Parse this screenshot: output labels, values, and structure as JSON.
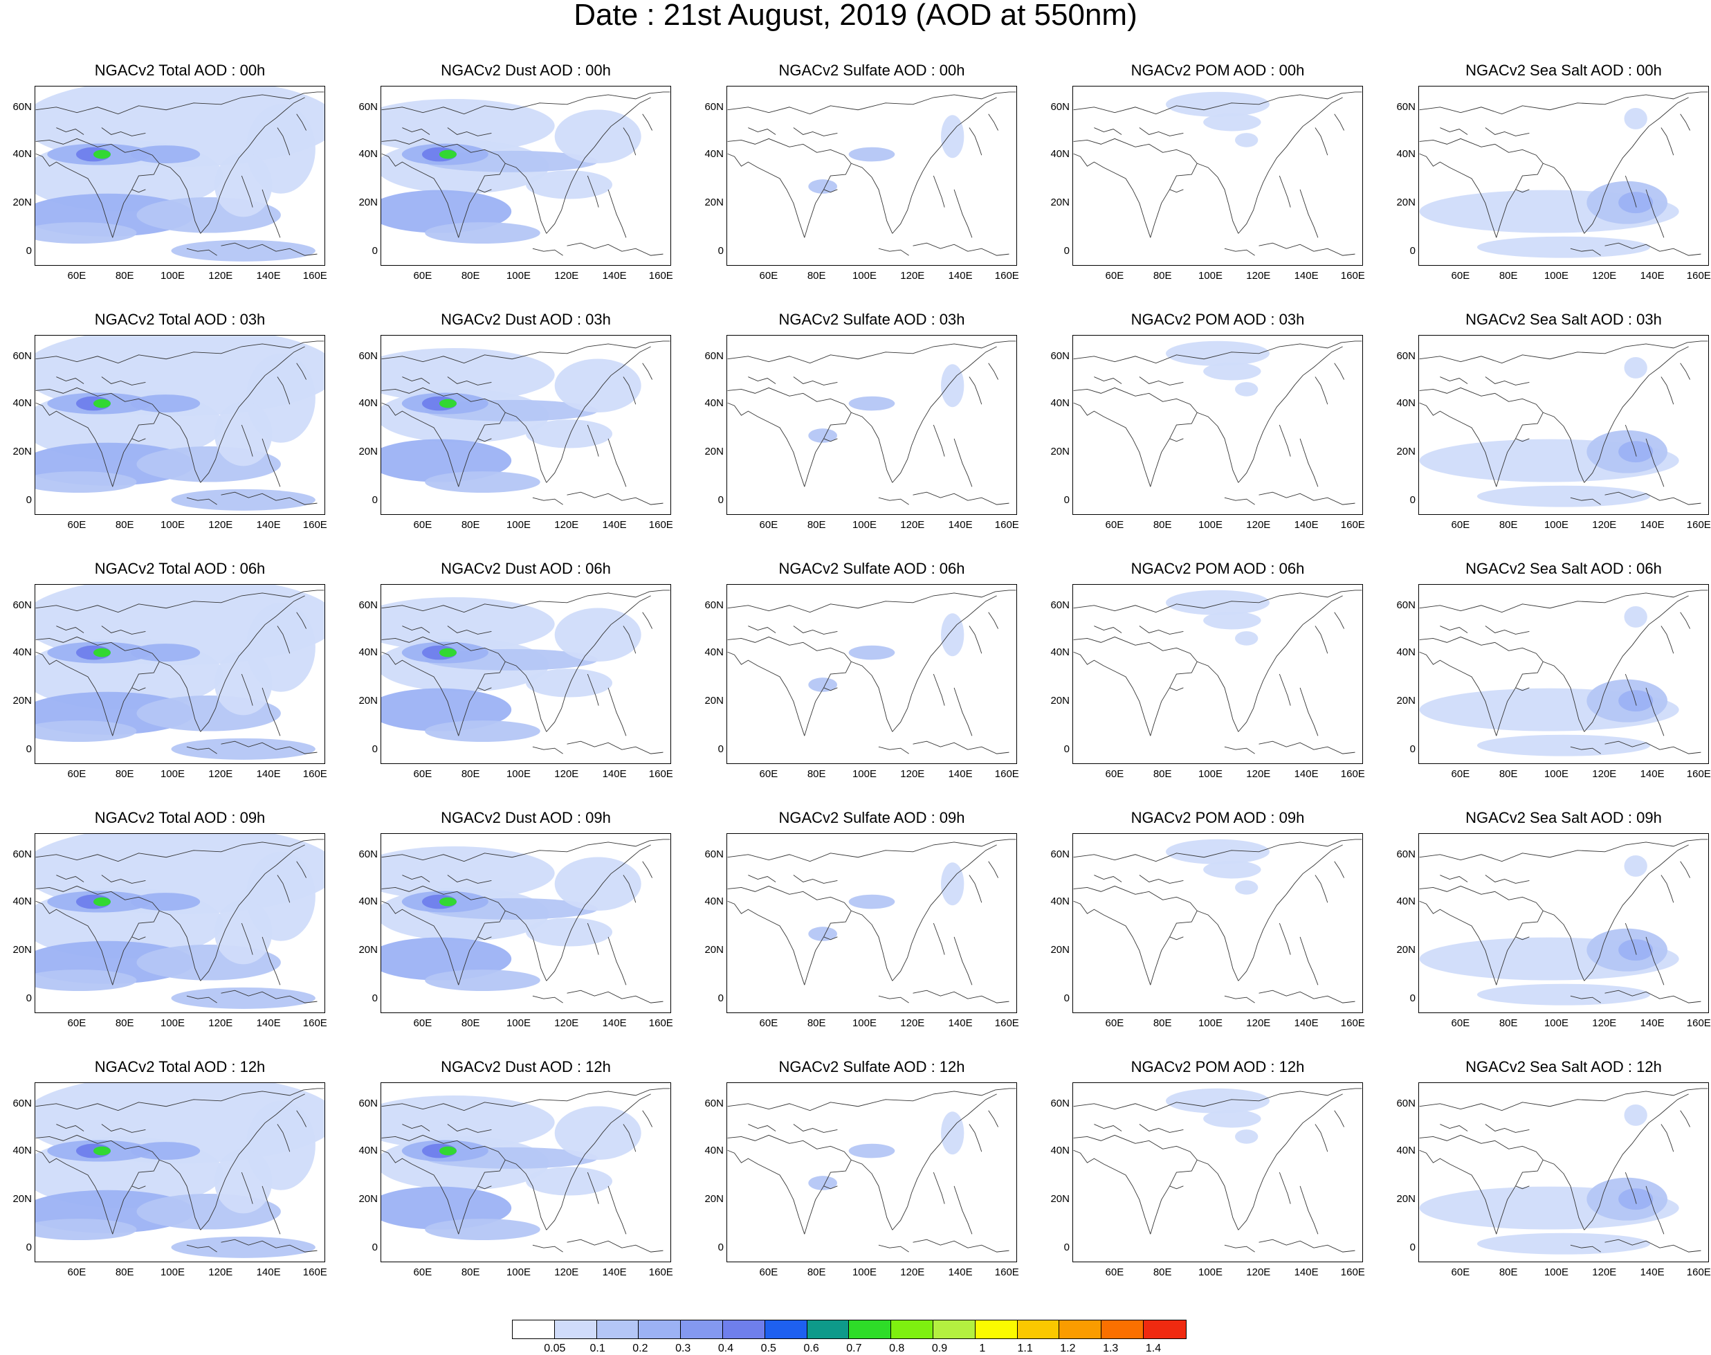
{
  "title": "Date : 21st August, 2019 (AOD at 550nm)",
  "rows": [
    {
      "time": "00h",
      "panels": [
        {
          "label": "NGACv2 Total AOD : 00h",
          "species": "total"
        },
        {
          "label": "NGACv2 Dust AOD : 00h",
          "species": "dust"
        },
        {
          "label": "NGACv2 Sulfate AOD : 00h",
          "species": "sulfate"
        },
        {
          "label": "NGACv2 POM AOD : 00h",
          "species": "pom"
        },
        {
          "label": "NGACv2 Sea Salt AOD : 00h",
          "species": "seasalt"
        }
      ]
    },
    {
      "time": "03h",
      "panels": [
        {
          "label": "NGACv2 Total AOD : 03h",
          "species": "total"
        },
        {
          "label": "NGACv2 Dust AOD : 03h",
          "species": "dust"
        },
        {
          "label": "NGACv2 Sulfate AOD : 03h",
          "species": "sulfate"
        },
        {
          "label": "NGACv2 POM AOD : 03h",
          "species": "pom"
        },
        {
          "label": "NGACv2 Sea Salt AOD : 03h",
          "species": "seasalt"
        }
      ]
    },
    {
      "time": "06h",
      "panels": [
        {
          "label": "NGACv2 Total AOD : 06h",
          "species": "total"
        },
        {
          "label": "NGACv2 Dust AOD : 06h",
          "species": "dust"
        },
        {
          "label": "NGACv2 Sulfate AOD : 06h",
          "species": "sulfate"
        },
        {
          "label": "NGACv2 POM AOD : 06h",
          "species": "pom"
        },
        {
          "label": "NGACv2 Sea Salt AOD : 06h",
          "species": "seasalt"
        }
      ]
    },
    {
      "time": "09h",
      "panels": [
        {
          "label": "NGACv2 Total AOD : 09h",
          "species": "total"
        },
        {
          "label": "NGACv2 Dust AOD : 09h",
          "species": "dust"
        },
        {
          "label": "NGACv2 Sulfate AOD : 09h",
          "species": "sulfate"
        },
        {
          "label": "NGACv2 POM AOD : 09h",
          "species": "pom"
        },
        {
          "label": "NGACv2 Sea Salt  AOD : 09h",
          "species": "seasalt"
        }
      ]
    },
    {
      "time": "12h",
      "panels": [
        {
          "label": "NGACv2 Total AOD  : 12h",
          "species": "total"
        },
        {
          "label": "NGACv2 Dust AOD : 12h",
          "species": "dust"
        },
        {
          "label": "NGACv2 Sulfate AOD : 12h",
          "species": "sulfate"
        },
        {
          "label": "NGACv2 POM  AOD : 12h",
          "species": "pom"
        },
        {
          "label": "NGACv2 Sea Salt  AOD : 12h",
          "species": "seasalt"
        }
      ]
    }
  ],
  "lat_ticks": [
    "60N",
    "40N",
    "20N",
    "0"
  ],
  "lon_ticks": [
    "60E",
    "80E",
    "100E",
    "120E",
    "140E",
    "160E"
  ],
  "colorbar": {
    "colors": [
      "#ffffff",
      "#d0dcfa",
      "#b4c6f6",
      "#9cb2f4",
      "#8499f0",
      "#6f7fec",
      "#1e60f0",
      "#0e9a8a",
      "#2edc28",
      "#7ef010",
      "#b4f040",
      "#fafa00",
      "#fac800",
      "#fa9c00",
      "#fa7000",
      "#f02a10"
    ],
    "labels": [
      "0.05",
      "0.1",
      "0.2",
      "0.3",
      "0.4",
      "0.5",
      "0.6",
      "0.7",
      "0.8",
      "0.9",
      "1",
      "1.1",
      "1.2",
      "1.3",
      "1.4"
    ]
  }
}
